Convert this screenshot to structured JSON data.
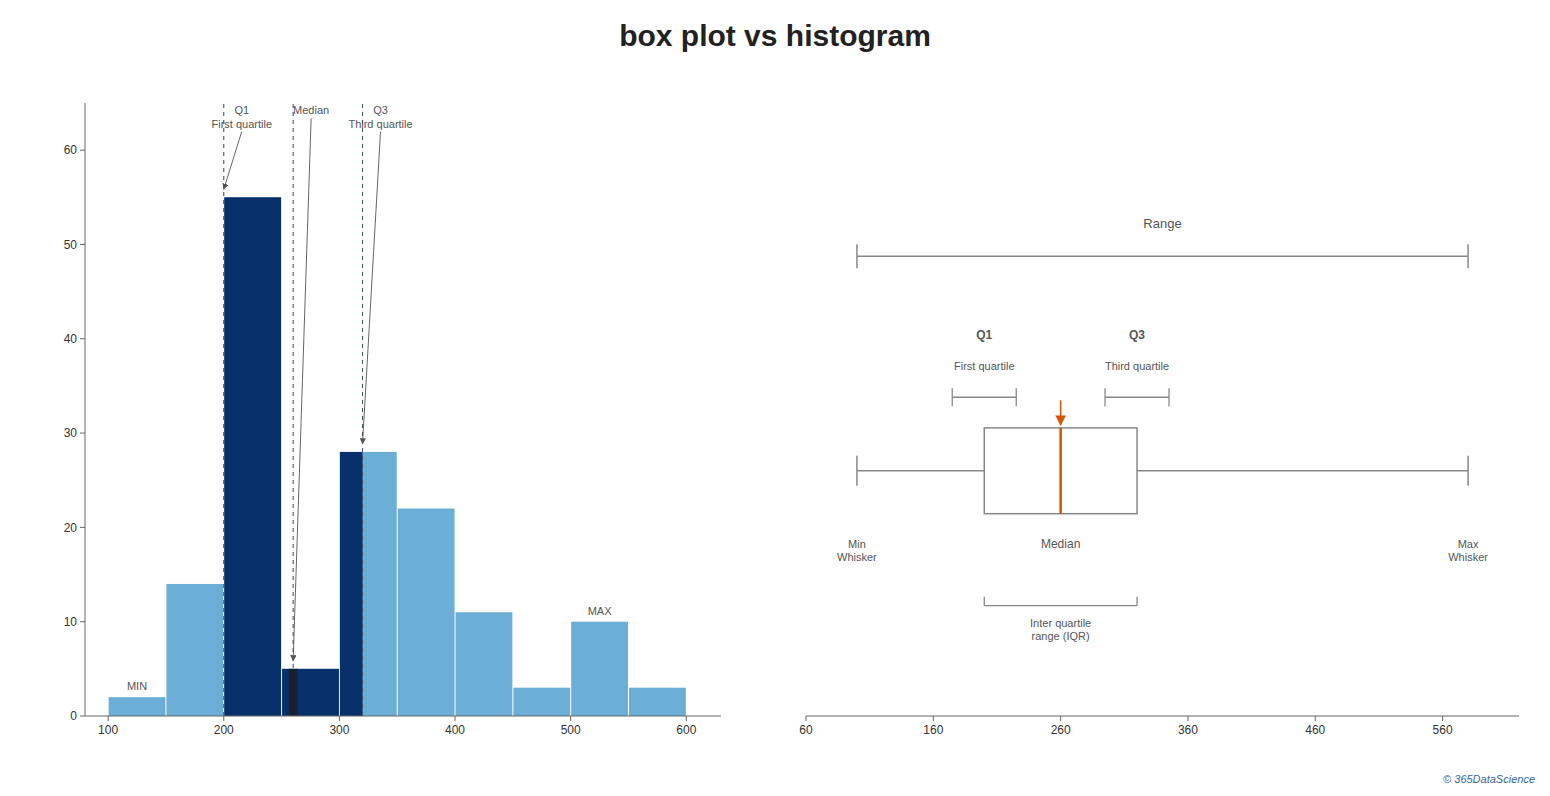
{
  "chart_data": [
    {
      "type": "histogram",
      "title": "box plot vs histogram",
      "bins": [
        100,
        150,
        200,
        250,
        300,
        350,
        400,
        450,
        500,
        550,
        600
      ],
      "values": [
        2,
        14,
        55,
        5,
        28,
        22,
        11,
        3,
        10,
        3
      ],
      "color": "#6baed6",
      "xlim": [
        80,
        630
      ],
      "ylim": [
        0,
        65
      ],
      "xticks": [
        100,
        200,
        300,
        400,
        500,
        600
      ],
      "yticks": [
        0,
        10,
        20,
        30,
        40,
        50,
        60
      ],
      "grid": false,
      "q1": 200,
      "median": 260,
      "q3": 320,
      "annotations": [
        {
          "text": "Q1\nFirst quartile",
          "x": 200
        },
        {
          "text": "Median",
          "x": 260
        },
        {
          "text": "Q3\nThird quartile",
          "x": 320
        },
        {
          "text": "MIN",
          "x": 125,
          "y": 2
        },
        {
          "text": "MAX",
          "x": 525,
          "y": 10
        }
      ]
    },
    {
      "type": "box",
      "whisker_low": 100,
      "q1": 200,
      "median": 260,
      "q3": 320,
      "whisker_high": 580,
      "color": "#888888",
      "xlim": [
        60,
        620
      ],
      "xticks": [
        60,
        160,
        260,
        360,
        460,
        560
      ],
      "tick_labels": "x",
      "grid": false,
      "annotations": [
        {
          "text": "Range",
          "x": 340
        },
        {
          "text": "Q1",
          "x": 200
        },
        {
          "text": "First quartile",
          "x": 200
        },
        {
          "text": "Q3",
          "x": 320
        },
        {
          "text": "Third quartile",
          "x": 320
        },
        {
          "text": "Median",
          "x": 260
        },
        {
          "text": "Min\nWhisker",
          "x": 100
        },
        {
          "text": "Max\nWhisker",
          "x": 580
        },
        {
          "text": "Inter quartile\nrange (IQR)",
          "x": 260
        },
        {
          "text": "© 365DataScience"
        }
      ]
    }
  ]
}
